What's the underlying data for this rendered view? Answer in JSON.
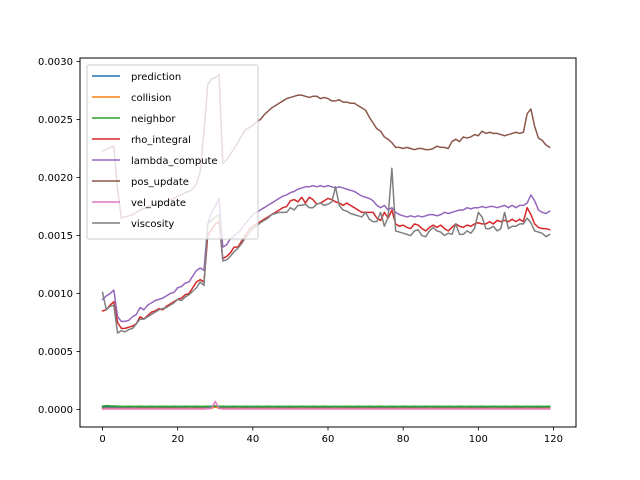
{
  "chart_data": {
    "type": "line",
    "title": "",
    "xlabel": "",
    "ylabel": "",
    "xlim": [
      -6,
      126
    ],
    "ylim": [
      -0.00015,
      0.00303
    ],
    "xticks": [
      0,
      20,
      40,
      60,
      80,
      100,
      120
    ],
    "xtick_labels": [
      "0",
      "20",
      "40",
      "60",
      "80",
      "100",
      "120"
    ],
    "yticks": [
      0,
      0.0005,
      0.001,
      0.0015,
      0.002,
      0.0025,
      0.003
    ],
    "ytick_labels": [
      "0.0000",
      "0.0005",
      "0.0010",
      "0.0015",
      "0.0020",
      "0.0025",
      "0.0030"
    ],
    "grid": false,
    "legend_position": "upper-left",
    "series": [
      {
        "name": "prediction",
        "color": "#1f77b4",
        "values": [
          2e-05,
          2.2e-05,
          2e-05,
          2.1e-05,
          1.9e-05,
          2e-05,
          2.1e-05,
          2e-05,
          2.2e-05,
          2e-05,
          1.9e-05,
          2.1e-05,
          2e-05,
          2e-05,
          2.2e-05,
          2e-05,
          1.9e-05,
          2.1e-05,
          2e-05,
          2e-05,
          2.1e-05,
          2e-05,
          1.9e-05,
          2.2e-05,
          2e-05,
          2.1e-05,
          2e-05,
          1.9e-05,
          2e-05,
          2.2e-05,
          2.1e-05,
          2e-05,
          1.9e-05,
          2e-05,
          2.1e-05,
          2e-05,
          2.2e-05,
          2e-05,
          1.9e-05,
          2.1e-05,
          2e-05,
          2e-05,
          2.1e-05,
          1.9e-05,
          2e-05,
          2.2e-05,
          2e-05,
          2.1e-05,
          2e-05,
          1.9e-05,
          2e-05,
          2.1e-05,
          2e-05,
          2.2e-05,
          2e-05,
          1.9e-05,
          2.1e-05,
          2e-05,
          2e-05,
          2.1e-05,
          1.9e-05,
          2e-05,
          2.2e-05,
          2e-05,
          2.1e-05,
          2e-05,
          1.9e-05,
          2e-05,
          2.1e-05,
          2e-05,
          2.2e-05,
          2e-05,
          1.9e-05,
          2.1e-05,
          2e-05,
          2e-05,
          2.1e-05,
          1.9e-05,
          2e-05,
          2.2e-05,
          2e-05,
          2.1e-05,
          2e-05,
          1.9e-05,
          2e-05,
          2.1e-05,
          2e-05,
          2.2e-05,
          2e-05,
          1.9e-05,
          2.1e-05,
          2e-05,
          2e-05,
          2.1e-05,
          1.9e-05,
          2e-05,
          2.2e-05,
          2e-05,
          2.1e-05,
          2e-05,
          1.9e-05,
          2e-05,
          2.1e-05,
          2e-05,
          2.2e-05,
          2e-05,
          1.9e-05,
          2.1e-05,
          2e-05,
          2e-05,
          2.1e-05,
          1.9e-05,
          2e-05,
          2.2e-05,
          2e-05,
          2.1e-05,
          2e-05,
          1.9e-05,
          2e-05,
          2.1e-05
        ]
      },
      {
        "name": "collision",
        "color": "#ff7f0e",
        "values": [
          1e-05,
          1.1e-05,
          1e-05,
          1e-05,
          1.1e-05,
          1e-05,
          1e-05,
          1.1e-05,
          1e-05,
          1e-05,
          1.1e-05,
          1e-05,
          1e-05,
          1.1e-05,
          1e-05,
          1e-05,
          1.1e-05,
          1e-05,
          1e-05,
          1.1e-05,
          1e-05,
          1e-05,
          1.1e-05,
          1e-05,
          1e-05,
          1.1e-05,
          1e-05,
          1e-05,
          1.1e-05,
          1e-05,
          2.5e-05,
          1e-05,
          1.1e-05,
          1e-05,
          1e-05,
          1.1e-05,
          1e-05,
          1e-05,
          1.1e-05,
          1e-05,
          1e-05,
          1.1e-05,
          1e-05,
          1e-05,
          1.1e-05,
          1e-05,
          1e-05,
          1.1e-05,
          1e-05,
          1e-05,
          1.1e-05,
          1e-05,
          1e-05,
          1.1e-05,
          1e-05,
          1e-05,
          1.1e-05,
          1e-05,
          1e-05,
          1.1e-05,
          1e-05,
          1e-05,
          1.1e-05,
          1e-05,
          1e-05,
          1.1e-05,
          1e-05,
          1e-05,
          1.1e-05,
          1e-05,
          1e-05,
          1.1e-05,
          1e-05,
          1e-05,
          1.1e-05,
          1e-05,
          1e-05,
          1.1e-05,
          1e-05,
          1e-05,
          1.1e-05,
          1e-05,
          1e-05,
          1.1e-05,
          1e-05,
          1e-05,
          1.1e-05,
          1e-05,
          1e-05,
          1.1e-05,
          1e-05,
          1e-05,
          1.1e-05,
          1e-05,
          1e-05,
          1.1e-05,
          1e-05,
          1e-05,
          1.1e-05,
          1e-05,
          1e-05,
          1.1e-05,
          1e-05,
          1e-05,
          1.1e-05,
          1e-05,
          1e-05,
          1.1e-05,
          1e-05,
          1e-05,
          1.1e-05,
          1e-05,
          1e-05,
          1.1e-05,
          1e-05,
          1e-05,
          1.1e-05,
          1e-05,
          1e-05,
          1.1e-05
        ]
      },
      {
        "name": "neighbor",
        "color": "#2ca02c",
        "values": [
          3e-05,
          3.4e-05,
          3.2e-05,
          3.1e-05,
          3e-05,
          2.8e-05,
          2.8e-05,
          2.9e-05,
          2.8e-05,
          2.8e-05,
          2.9e-05,
          2.8e-05,
          2.8e-05,
          2.9e-05,
          2.8e-05,
          2.8e-05,
          2.9e-05,
          2.8e-05,
          2.8e-05,
          2.9e-05,
          2.8e-05,
          2.8e-05,
          2.9e-05,
          2.8e-05,
          2.8e-05,
          2.9e-05,
          2.8e-05,
          2.8e-05,
          2.9e-05,
          3e-05,
          3.2e-05,
          3e-05,
          2.9e-05,
          2.8e-05,
          2.8e-05,
          2.9e-05,
          2.8e-05,
          2.8e-05,
          2.9e-05,
          2.8e-05,
          2.8e-05,
          2.9e-05,
          2.8e-05,
          2.8e-05,
          2.9e-05,
          2.8e-05,
          2.8e-05,
          2.9e-05,
          2.8e-05,
          2.8e-05,
          2.9e-05,
          2.8e-05,
          2.8e-05,
          2.9e-05,
          2.8e-05,
          2.8e-05,
          2.9e-05,
          2.8e-05,
          2.8e-05,
          2.9e-05,
          2.8e-05,
          2.8e-05,
          2.9e-05,
          2.8e-05,
          2.8e-05,
          2.9e-05,
          2.8e-05,
          2.8e-05,
          2.9e-05,
          2.8e-05,
          2.8e-05,
          2.9e-05,
          2.8e-05,
          2.8e-05,
          2.9e-05,
          2.8e-05,
          2.8e-05,
          2.9e-05,
          2.8e-05,
          2.8e-05,
          2.9e-05,
          2.8e-05,
          2.8e-05,
          2.9e-05,
          2.8e-05,
          2.8e-05,
          2.9e-05,
          2.8e-05,
          2.8e-05,
          2.9e-05,
          2.8e-05,
          2.8e-05,
          2.9e-05,
          2.8e-05,
          2.8e-05,
          2.9e-05,
          2.8e-05,
          2.8e-05,
          2.9e-05,
          2.8e-05,
          2.8e-05,
          2.9e-05,
          2.8e-05,
          2.8e-05,
          2.9e-05,
          2.8e-05,
          2.8e-05,
          2.9e-05,
          2.8e-05,
          2.8e-05,
          2.9e-05,
          2.8e-05,
          2.8e-05,
          2.9e-05,
          2.8e-05,
          2.8e-05,
          2.9e-05,
          2.8e-05,
          2.8e-05,
          2.9e-05
        ]
      },
      {
        "name": "rho_integral",
        "color": "#d62728",
        "values": [
          0.00085,
          0.00086,
          0.0009,
          0.00093,
          0.00075,
          0.0007,
          0.0007,
          0.00071,
          0.00072,
          0.00074,
          0.0008,
          0.00078,
          0.00081,
          0.00084,
          0.00085,
          0.00087,
          0.00086,
          0.00089,
          0.00091,
          0.00093,
          0.00095,
          0.00096,
          0.00099,
          0.001,
          0.00105,
          0.0011,
          0.00112,
          0.0011,
          0.0015,
          0.00155,
          0.0016,
          0.00162,
          0.0013,
          0.00132,
          0.00135,
          0.0014,
          0.0014,
          0.00145,
          0.0015,
          0.00155,
          0.00158,
          0.0016,
          0.00162,
          0.00164,
          0.00166,
          0.00168,
          0.0017,
          0.00172,
          0.00174,
          0.00175,
          0.0018,
          0.00181,
          0.00179,
          0.00183,
          0.00178,
          0.00183,
          0.00181,
          0.00177,
          0.00178,
          0.0018,
          0.00182,
          0.00181,
          0.00179,
          0.00178,
          0.00176,
          0.00178,
          0.00176,
          0.00174,
          0.00172,
          0.0017,
          0.0017,
          0.0017,
          0.0017,
          0.00165,
          0.00163,
          0.0017,
          0.00165,
          0.00172,
          0.0016,
          0.00158,
          0.00159,
          0.00157,
          0.00156,
          0.0016,
          0.00159,
          0.00156,
          0.00154,
          0.00157,
          0.00159,
          0.00157,
          0.00159,
          0.00156,
          0.00154,
          0.00157,
          0.0016,
          0.00158,
          0.00157,
          0.00159,
          0.00158,
          0.0016,
          0.00161,
          0.0016,
          0.0016,
          0.00162,
          0.0016,
          0.00163,
          0.00162,
          0.00163,
          0.00162,
          0.00164,
          0.00162,
          0.00164,
          0.00162,
          0.00174,
          0.00168,
          0.0016,
          0.00157,
          0.00156,
          0.00156,
          0.00155
        ]
      },
      {
        "name": "lambda_compute",
        "color": "#9467bd",
        "values": [
          0.00095,
          0.00098,
          0.001,
          0.00103,
          0.0008,
          0.00076,
          0.00076,
          0.00077,
          0.0008,
          0.00082,
          0.00088,
          0.00086,
          0.0009,
          0.00092,
          0.00094,
          0.00095,
          0.00096,
          0.00098,
          0.001,
          0.00101,
          0.00105,
          0.00106,
          0.00109,
          0.0011,
          0.00115,
          0.0012,
          0.00122,
          0.0012,
          0.0016,
          0.0017,
          0.00175,
          0.00182,
          0.0014,
          0.00142,
          0.00147,
          0.0015,
          0.00152,
          0.00156,
          0.0016,
          0.00164,
          0.00168,
          0.0017,
          0.00172,
          0.00174,
          0.00176,
          0.00178,
          0.0018,
          0.00182,
          0.00184,
          0.00185,
          0.00187,
          0.00188,
          0.0019,
          0.00191,
          0.00192,
          0.00192,
          0.00193,
          0.00192,
          0.00193,
          0.00192,
          0.00193,
          0.00192,
          0.00191,
          0.00192,
          0.00191,
          0.0019,
          0.00189,
          0.00188,
          0.00186,
          0.00184,
          0.00183,
          0.00182,
          0.0018,
          0.00176,
          0.00174,
          0.00176,
          0.00172,
          0.00174,
          0.0017,
          0.00168,
          0.00167,
          0.00166,
          0.00167,
          0.00166,
          0.00167,
          0.00166,
          0.00167,
          0.00168,
          0.00168,
          0.00167,
          0.00168,
          0.0017,
          0.00169,
          0.0017,
          0.00171,
          0.00172,
          0.00172,
          0.00174,
          0.00173,
          0.00174,
          0.00174,
          0.00175,
          0.00174,
          0.00175,
          0.00175,
          0.00174,
          0.00175,
          0.00176,
          0.00174,
          0.00176,
          0.00174,
          0.00176,
          0.00176,
          0.00178,
          0.00185,
          0.0018,
          0.00172,
          0.0017,
          0.00169,
          0.00171
        ]
      },
      {
        "name": "pos_update",
        "color": "#8c564b",
        "values": [
          0.00223,
          0.00224,
          0.00226,
          0.00227,
          0.0019,
          0.00165,
          0.00166,
          0.00167,
          0.00168,
          0.0017,
          0.00172,
          0.00173,
          0.00175,
          0.00176,
          0.00177,
          0.00178,
          0.00179,
          0.0018,
          0.00181,
          0.00182,
          0.00184,
          0.00185,
          0.00187,
          0.00188,
          0.0019,
          0.00195,
          0.00205,
          0.0024,
          0.0028,
          0.00285,
          0.00286,
          0.00289,
          0.00212,
          0.00215,
          0.0022,
          0.00225,
          0.0023,
          0.00236,
          0.00241,
          0.00243,
          0.00245,
          0.00248,
          0.0025,
          0.00254,
          0.00257,
          0.0026,
          0.00262,
          0.00264,
          0.00266,
          0.00268,
          0.00269,
          0.0027,
          0.00271,
          0.00271,
          0.0027,
          0.00269,
          0.0027,
          0.0027,
          0.00268,
          0.00269,
          0.00268,
          0.00266,
          0.00266,
          0.00267,
          0.00265,
          0.00265,
          0.00264,
          0.00264,
          0.00262,
          0.0026,
          0.00258,
          0.00252,
          0.00247,
          0.00242,
          0.0024,
          0.00235,
          0.00233,
          0.0023,
          0.00226,
          0.00226,
          0.00225,
          0.00226,
          0.00225,
          0.00224,
          0.00225,
          0.00225,
          0.00224,
          0.00224,
          0.00225,
          0.00227,
          0.00226,
          0.00226,
          0.00225,
          0.00231,
          0.00233,
          0.00231,
          0.00235,
          0.00234,
          0.00235,
          0.00237,
          0.00236,
          0.0024,
          0.00238,
          0.00239,
          0.00238,
          0.00238,
          0.00237,
          0.00236,
          0.00237,
          0.00238,
          0.00239,
          0.00238,
          0.00239,
          0.00255,
          0.00259,
          0.00244,
          0.00234,
          0.00232,
          0.00228,
          0.00226
        ]
      },
      {
        "name": "vel_update",
        "color": "#e377c2",
        "values": [
          5e-06,
          5e-06,
          5e-06,
          5e-06,
          5e-06,
          5e-06,
          5e-06,
          5e-06,
          5e-06,
          5e-06,
          5e-06,
          5e-06,
          5e-06,
          5e-06,
          5e-06,
          5e-06,
          5e-06,
          5e-06,
          5e-06,
          5e-06,
          5e-06,
          5e-06,
          5e-06,
          5e-06,
          5e-06,
          5e-06,
          5e-06,
          5e-06,
          8e-06,
          1.2e-05,
          7e-05,
          1e-05,
          5e-06,
          5e-06,
          5e-06,
          5e-06,
          5e-06,
          5e-06,
          5e-06,
          5e-06,
          5e-06,
          5e-06,
          5e-06,
          5e-06,
          5e-06,
          5e-06,
          5e-06,
          5e-06,
          5e-06,
          5e-06,
          5e-06,
          5e-06,
          5e-06,
          5e-06,
          5e-06,
          5e-06,
          5e-06,
          5e-06,
          5e-06,
          5e-06,
          5e-06,
          5e-06,
          5e-06,
          5e-06,
          5e-06,
          5e-06,
          5e-06,
          5e-06,
          5e-06,
          5e-06,
          5e-06,
          5e-06,
          5e-06,
          5e-06,
          5e-06,
          5e-06,
          5e-06,
          5e-06,
          5e-06,
          5e-06,
          5e-06,
          5e-06,
          5e-06,
          5e-06,
          5e-06,
          5e-06,
          5e-06,
          5e-06,
          5e-06,
          5e-06,
          5e-06,
          5e-06,
          5e-06,
          5e-06,
          5e-06,
          5e-06,
          5e-06,
          5e-06,
          5e-06,
          5e-06,
          5e-06,
          5e-06,
          5e-06,
          5e-06,
          5e-06,
          5e-06,
          5e-06,
          5e-06,
          5e-06,
          5e-06,
          5e-06,
          5e-06,
          5e-06,
          5e-06,
          5e-06,
          5e-06,
          5e-06,
          5e-06,
          5e-06,
          5e-06
        ]
      },
      {
        "name": "viscosity",
        "color": "#7f7f7f",
        "values": [
          0.00101,
          0.00086,
          0.00089,
          0.0009,
          0.00066,
          0.00068,
          0.00067,
          0.00069,
          0.0007,
          0.00074,
          0.00078,
          0.00078,
          0.0008,
          0.00082,
          0.00084,
          0.00086,
          0.00087,
          0.00088,
          0.0009,
          0.00092,
          0.00095,
          0.00094,
          0.00097,
          0.00099,
          0.00102,
          0.00105,
          0.0011,
          0.00107,
          0.0016,
          0.00163,
          0.00166,
          0.00168,
          0.00128,
          0.00129,
          0.00132,
          0.00136,
          0.00139,
          0.00143,
          0.00148,
          0.00152,
          0.00156,
          0.00158,
          0.00161,
          0.00163,
          0.00165,
          0.00168,
          0.00169,
          0.0017,
          0.0017,
          0.0017,
          0.00174,
          0.00172,
          0.00176,
          0.00176,
          0.00177,
          0.00174,
          0.00174,
          0.00177,
          0.00178,
          0.00176,
          0.00177,
          0.00179,
          0.00192,
          0.00176,
          0.00172,
          0.00171,
          0.00169,
          0.00168,
          0.00167,
          0.00166,
          0.0017,
          0.00164,
          0.00162,
          0.00162,
          0.0017,
          0.00158,
          0.00166,
          0.00208,
          0.00154,
          0.00153,
          0.00152,
          0.00151,
          0.0015,
          0.00154,
          0.00155,
          0.0015,
          0.00149,
          0.00154,
          0.00157,
          0.00154,
          0.00153,
          0.0015,
          0.00152,
          0.00151,
          0.0016,
          0.00151,
          0.00151,
          0.00154,
          0.00152,
          0.00156,
          0.0017,
          0.00166,
          0.00156,
          0.00156,
          0.00158,
          0.00154,
          0.00156,
          0.0017,
          0.00156,
          0.00158,
          0.00158,
          0.0016,
          0.0016,
          0.00165,
          0.00161,
          0.00154,
          0.00153,
          0.00152,
          0.00149,
          0.00151
        ]
      }
    ]
  }
}
